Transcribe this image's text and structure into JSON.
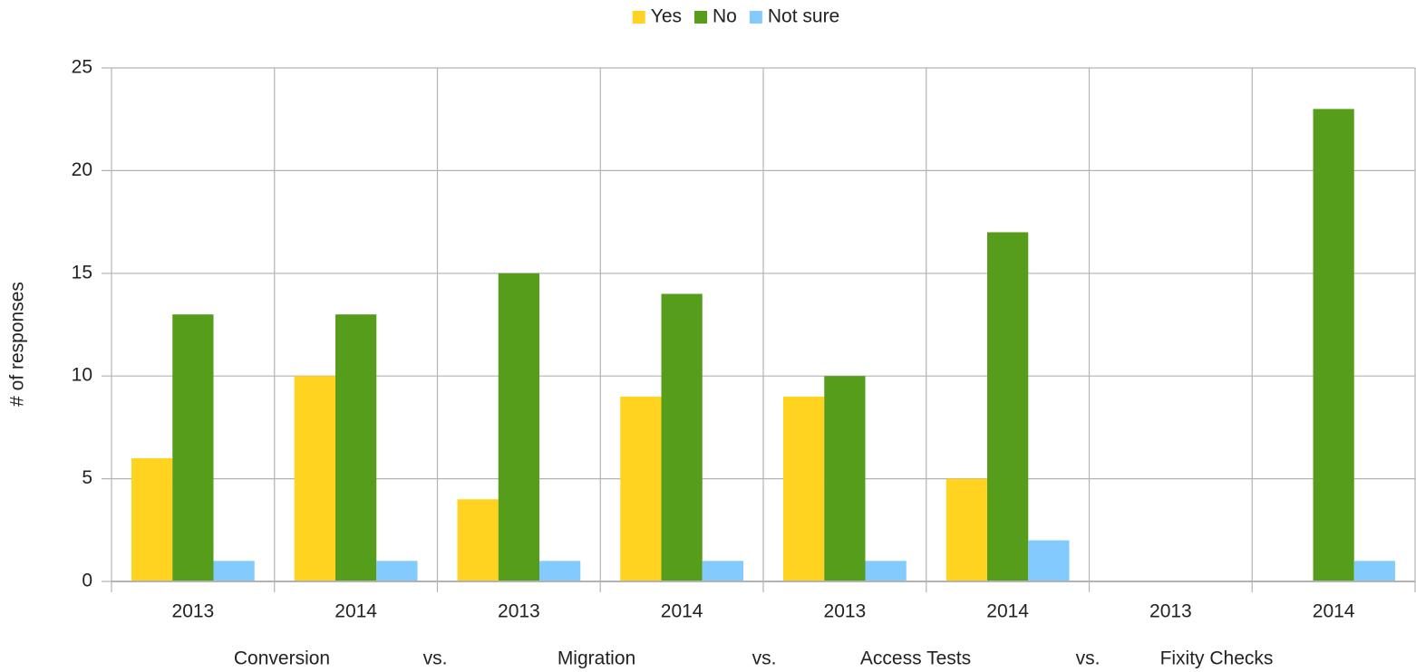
{
  "chart_data": {
    "type": "bar",
    "ylabel": "# of responses",
    "categories": [
      "2013",
      "2014",
      "2013",
      "2014",
      "2013",
      "2014",
      "2013",
      "2014"
    ],
    "group_labels": [
      "Conversion",
      "vs.",
      "Migration",
      "vs.",
      "Access Tests",
      "vs.",
      "Fixity Checks"
    ],
    "series": [
      {
        "name": "Yes",
        "color": "#ffd320",
        "values": [
          6,
          10,
          4,
          9,
          9,
          5,
          null,
          0
        ]
      },
      {
        "name": "No",
        "color": "#579d1c",
        "values": [
          13,
          13,
          15,
          14,
          10,
          17,
          null,
          23
        ]
      },
      {
        "name": "Not sure",
        "color": "#83caff",
        "values": [
          1,
          1,
          1,
          1,
          1,
          2,
          null,
          1
        ]
      }
    ],
    "ylim": [
      0,
      25
    ],
    "yticks": [
      0,
      5,
      10,
      15,
      20,
      25
    ],
    "grid": true,
    "legend": "top"
  }
}
